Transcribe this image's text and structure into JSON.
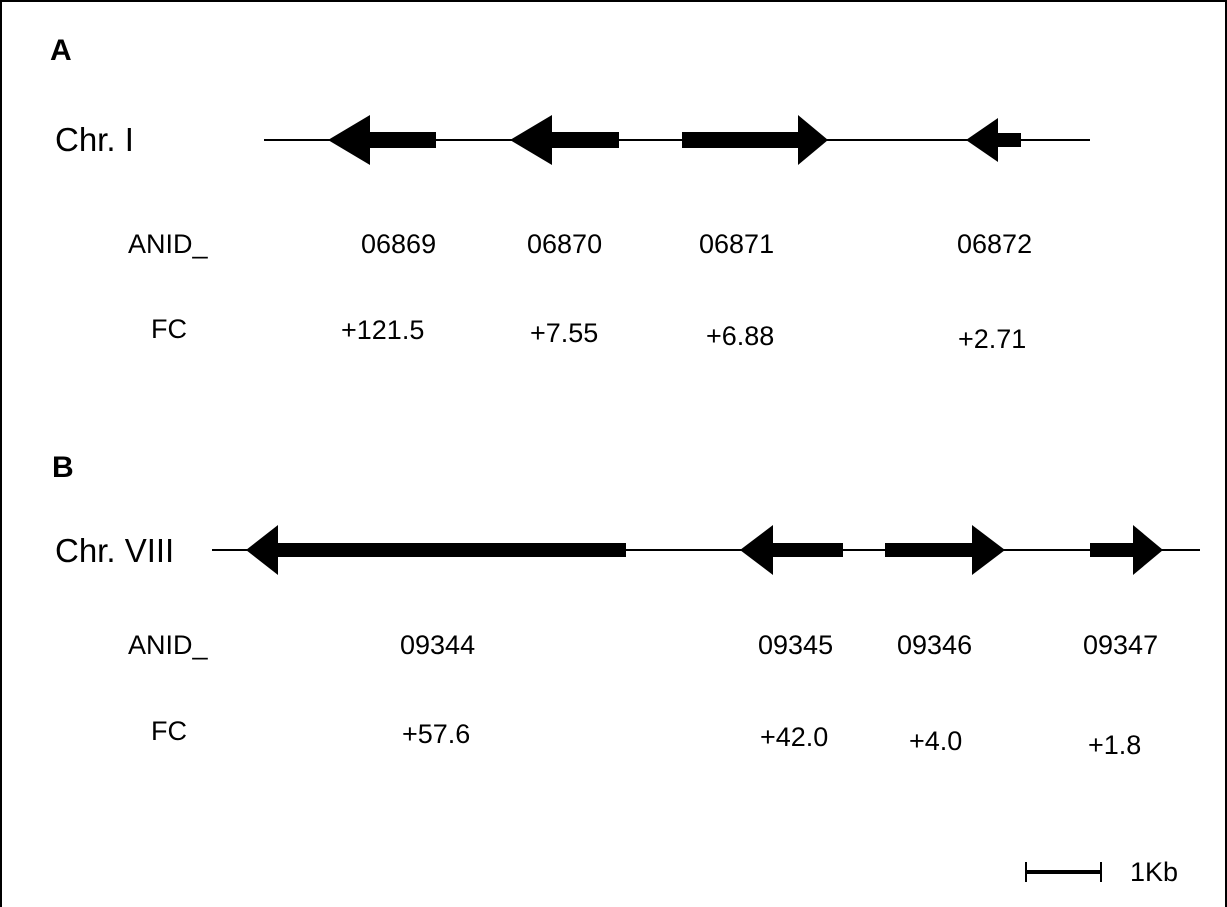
{
  "panels": [
    {
      "label": "A",
      "chromosome": "Chr. I",
      "id_row_label": "ANID_",
      "fc_row_label": "FC",
      "genes": [
        {
          "id": "06869",
          "fc": "+121.5",
          "strand": "-"
        },
        {
          "id": "06870",
          "fc": "+7.55",
          "strand": "-"
        },
        {
          "id": "06871",
          "fc": "+6.88",
          "strand": "+"
        },
        {
          "id": "06872",
          "fc": "+2.71",
          "strand": "-"
        }
      ]
    },
    {
      "label": "B",
      "chromosome": "Chr. VIII",
      "id_row_label": "ANID_",
      "fc_row_label": "FC",
      "genes": [
        {
          "id": "09344",
          "fc": "+57.6",
          "strand": "-"
        },
        {
          "id": "09345",
          "fc": "+42.0",
          "strand": "-"
        },
        {
          "id": "09346",
          "fc": "+4.0",
          "strand": "+"
        },
        {
          "id": "09347",
          "fc": "+1.8",
          "strand": "+"
        }
      ]
    }
  ],
  "scale_bar": {
    "label": "1Kb"
  },
  "colors": {
    "ink": "#000000",
    "background": "#ffffff"
  }
}
